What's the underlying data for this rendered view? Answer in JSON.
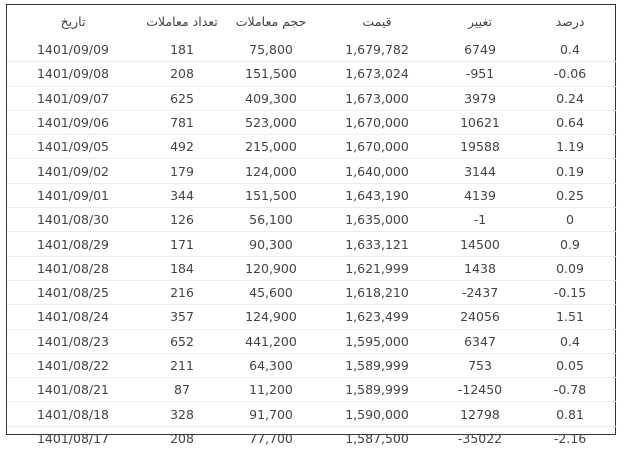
{
  "table": {
    "headers": [
      "تاریخ",
      "تعداد معاملات",
      "حجم معاملات",
      "قیمت",
      "تغییر",
      "درصد"
    ],
    "rows": [
      [
        "1401/09/09",
        "181",
        "75,800",
        "1,679,782",
        "6749",
        "0.4"
      ],
      [
        "1401/09/08",
        "208",
        "151,500",
        "1,673,024",
        "-951",
        "-0.06"
      ],
      [
        "1401/09/07",
        "625",
        "409,300",
        "1,673,000",
        "3979",
        "0.24"
      ],
      [
        "1401/09/06",
        "781",
        "523,000",
        "1,670,000",
        "10621",
        "0.64"
      ],
      [
        "1401/09/05",
        "492",
        "215,000",
        "1,670,000",
        "19588",
        "1.19"
      ],
      [
        "1401/09/02",
        "179",
        "124,000",
        "1,640,000",
        "3144",
        "0.19"
      ],
      [
        "1401/09/01",
        "344",
        "151,500",
        "1,643,190",
        "4139",
        "0.25"
      ],
      [
        "1401/08/30",
        "126",
        "56,100",
        "1,635,000",
        "-1",
        "0"
      ],
      [
        "1401/08/29",
        "171",
        "90,300",
        "1,633,121",
        "14500",
        "0.9"
      ],
      [
        "1401/08/28",
        "184",
        "120,900",
        "1,621,999",
        "1438",
        "0.09"
      ],
      [
        "1401/08/25",
        "216",
        "45,600",
        "1,618,210",
        "-2437",
        "-0.15"
      ],
      [
        "1401/08/24",
        "357",
        "124,900",
        "1,623,499",
        "24056",
        "1.51"
      ],
      [
        "1401/08/23",
        "652",
        "441,200",
        "1,595,000",
        "6347",
        "0.4"
      ],
      [
        "1401/08/22",
        "211",
        "64,300",
        "1,589,999",
        "753",
        "0.05"
      ],
      [
        "1401/08/21",
        "87",
        "11,200",
        "1,589,999",
        "-12450",
        "-0.78"
      ],
      [
        "1401/08/18",
        "328",
        "91,700",
        "1,590,000",
        "12798",
        "0.81"
      ],
      [
        "1401/08/17",
        "208",
        "77,700",
        "1,587,500",
        "-35022",
        "-2.16"
      ]
    ]
  }
}
